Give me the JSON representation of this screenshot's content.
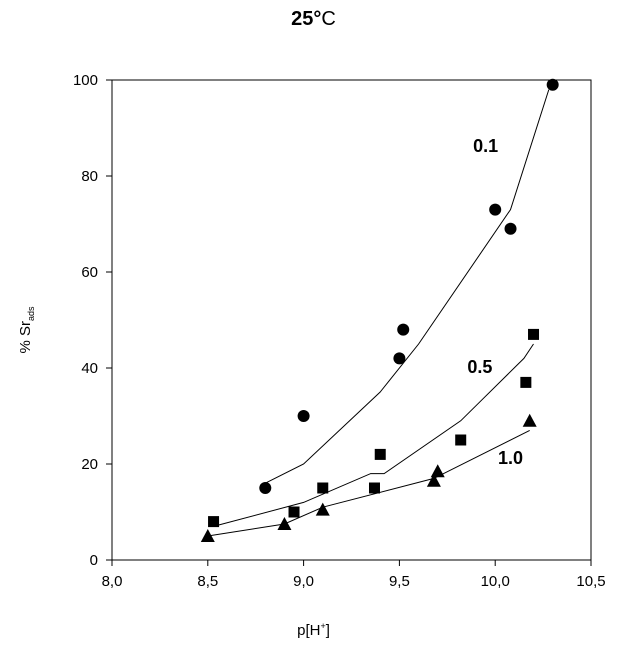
{
  "chart_data": {
    "type": "scatter",
    "title": "25°C",
    "xlabel": "p[H⁺]",
    "ylabel": "% Sr_ads",
    "xlim": [
      8.0,
      10.5
    ],
    "ylim": [
      0,
      100
    ],
    "x_ticks": [
      "8,0",
      "8,5",
      "9,0",
      "9,5",
      "10,0",
      "10,5"
    ],
    "y_ticks": [
      "0",
      "20",
      "40",
      "60",
      "80",
      "100"
    ],
    "grid": false,
    "legend": "none (series labeled inline)",
    "series": [
      {
        "name": "0.1",
        "marker": "circle",
        "points": [
          [
            8.8,
            15
          ],
          [
            9.0,
            30
          ],
          [
            9.5,
            42
          ],
          [
            9.52,
            48
          ],
          [
            10.0,
            73
          ],
          [
            10.08,
            69
          ],
          [
            10.3,
            99
          ]
        ],
        "fit": [
          [
            8.8,
            16
          ],
          [
            9.0,
            20
          ],
          [
            9.4,
            35
          ],
          [
            9.6,
            45
          ],
          [
            10.08,
            73
          ],
          [
            10.28,
            98
          ]
        ]
      },
      {
        "name": "0.5",
        "marker": "square",
        "points": [
          [
            8.53,
            8
          ],
          [
            8.95,
            10
          ],
          [
            9.1,
            15
          ],
          [
            9.37,
            15
          ],
          [
            9.4,
            22
          ],
          [
            9.82,
            25
          ],
          [
            10.16,
            37
          ],
          [
            10.2,
            47
          ]
        ],
        "fit": [
          [
            8.53,
            7
          ],
          [
            9.0,
            12
          ],
          [
            9.35,
            18
          ],
          [
            9.42,
            18
          ],
          [
            9.82,
            29
          ],
          [
            10.15,
            42
          ],
          [
            10.2,
            45
          ]
        ]
      },
      {
        "name": "1.0",
        "marker": "triangle",
        "points": [
          [
            8.5,
            5
          ],
          [
            8.9,
            7.5
          ],
          [
            9.1,
            10.5
          ],
          [
            9.68,
            16.5
          ],
          [
            9.7,
            18.5
          ],
          [
            10.18,
            29
          ]
        ],
        "fit": [
          [
            8.5,
            5
          ],
          [
            8.9,
            7.5
          ],
          [
            9.1,
            11
          ],
          [
            9.68,
            17
          ],
          [
            10.18,
            27
          ]
        ]
      }
    ]
  }
}
